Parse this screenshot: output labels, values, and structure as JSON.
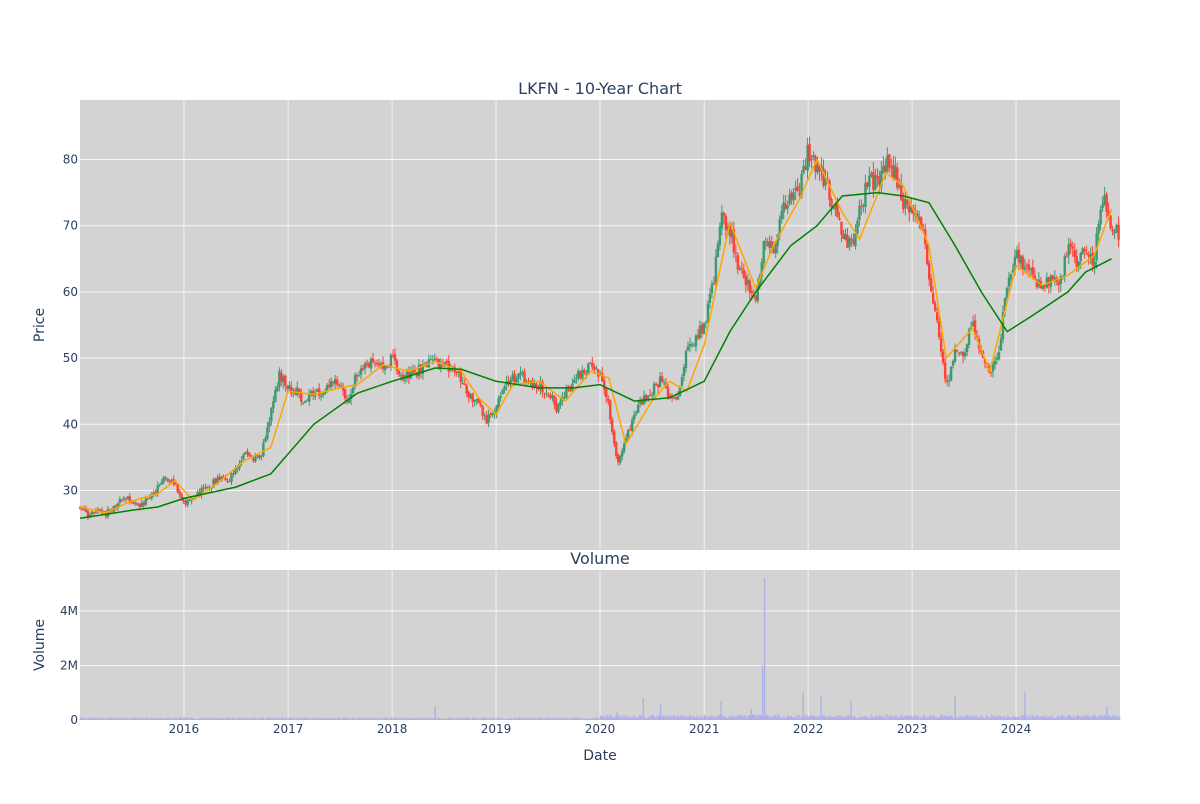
{
  "chart_data": [
    {
      "type": "candlestick",
      "title": "LKFN - 10-Year Chart",
      "ylabel": "Price",
      "xlim": [
        "2015-01-01",
        "2024-12-31"
      ],
      "ylim": [
        21,
        89
      ],
      "yticks": [
        30,
        40,
        50,
        60,
        70,
        80
      ],
      "grid": true,
      "legend": "none",
      "colors": {
        "increasing": "#3d9970",
        "decreasing": "#ff4136",
        "ma_short": "#ffa500",
        "ma_long": "#008000",
        "background": "#d3d3d3"
      },
      "close_series": [
        [
          "2015-01-01",
          27.5
        ],
        [
          "2015-02-01",
          26.2
        ],
        [
          "2015-03-01",
          26.8
        ],
        [
          "2015-04-01",
          26.5
        ],
        [
          "2015-05-01",
          27.5
        ],
        [
          "2015-06-01",
          28.8
        ],
        [
          "2015-07-01",
          28.5
        ],
        [
          "2015-08-01",
          27.5
        ],
        [
          "2015-09-01",
          28.8
        ],
        [
          "2015-10-01",
          30.5
        ],
        [
          "2015-11-01",
          32.0
        ],
        [
          "2015-12-01",
          31.0
        ],
        [
          "2016-01-01",
          28.0
        ],
        [
          "2016-02-01",
          28.5
        ],
        [
          "2016-03-01",
          30.0
        ],
        [
          "2016-04-01",
          30.5
        ],
        [
          "2016-05-01",
          32.0
        ],
        [
          "2016-06-01",
          31.0
        ],
        [
          "2016-07-01",
          33.5
        ],
        [
          "2016-08-01",
          35.5
        ],
        [
          "2016-09-01",
          35.0
        ],
        [
          "2016-10-01",
          35.5
        ],
        [
          "2016-11-01",
          42.0
        ],
        [
          "2016-12-01",
          47.5
        ],
        [
          "2017-01-01",
          45.5
        ],
        [
          "2017-02-01",
          45.0
        ],
        [
          "2017-03-01",
          43.0
        ],
        [
          "2017-04-01",
          45.0
        ],
        [
          "2017-05-01",
          44.0
        ],
        [
          "2017-06-01",
          46.5
        ],
        [
          "2017-07-01",
          45.5
        ],
        [
          "2017-08-01",
          43.5
        ],
        [
          "2017-09-01",
          48.0
        ],
        [
          "2017-10-01",
          48.5
        ],
        [
          "2017-11-01",
          49.5
        ],
        [
          "2017-12-01",
          48.5
        ],
        [
          "2018-01-01",
          50.0
        ],
        [
          "2018-02-01",
          47.0
        ],
        [
          "2018-03-01",
          47.5
        ],
        [
          "2018-04-01",
          48.0
        ],
        [
          "2018-05-01",
          49.0
        ],
        [
          "2018-06-01",
          49.5
        ],
        [
          "2018-07-01",
          48.5
        ],
        [
          "2018-08-01",
          49.0
        ],
        [
          "2018-09-01",
          47.0
        ],
        [
          "2018-10-01",
          44.5
        ],
        [
          "2018-11-01",
          43.0
        ],
        [
          "2018-12-01",
          40.5
        ],
        [
          "2019-01-01",
          42.5
        ],
        [
          "2019-02-01",
          46.5
        ],
        [
          "2019-03-01",
          47.0
        ],
        [
          "2019-04-01",
          47.5
        ],
        [
          "2019-05-01",
          46.0
        ],
        [
          "2019-06-01",
          46.0
        ],
        [
          "2019-07-01",
          45.0
        ],
        [
          "2019-08-01",
          42.5
        ],
        [
          "2019-09-01",
          44.5
        ],
        [
          "2019-10-01",
          46.5
        ],
        [
          "2019-11-01",
          48.0
        ],
        [
          "2019-12-01",
          48.5
        ],
        [
          "2020-01-01",
          47.5
        ],
        [
          "2020-02-01",
          43.0
        ],
        [
          "2020-03-01",
          34.0
        ],
        [
          "2020-04-01",
          38.0
        ],
        [
          "2020-05-01",
          41.0
        ],
        [
          "2020-06-01",
          44.0
        ],
        [
          "2020-07-01",
          45.0
        ],
        [
          "2020-08-01",
          47.0
        ],
        [
          "2020-09-01",
          44.5
        ],
        [
          "2020-10-01",
          44.0
        ],
        [
          "2020-11-01",
          51.0
        ],
        [
          "2020-12-01",
          53.0
        ],
        [
          "2021-01-01",
          55.0
        ],
        [
          "2021-02-01",
          61.0
        ],
        [
          "2021-03-01",
          71.0
        ],
        [
          "2021-04-01",
          69.5
        ],
        [
          "2021-05-01",
          64.0
        ],
        [
          "2021-06-01",
          61.0
        ],
        [
          "2021-07-01",
          59.0
        ],
        [
          "2021-08-01",
          67.5
        ],
        [
          "2021-09-01",
          66.0
        ],
        [
          "2021-10-01",
          72.0
        ],
        [
          "2021-11-01",
          74.5
        ],
        [
          "2021-12-01",
          75.0
        ],
        [
          "2022-01-01",
          81.5
        ],
        [
          "2022-02-01",
          79.0
        ],
        [
          "2022-03-01",
          77.0
        ],
        [
          "2022-04-01",
          73.0
        ],
        [
          "2022-05-01",
          69.0
        ],
        [
          "2022-06-01",
          67.0
        ],
        [
          "2022-07-01",
          72.0
        ],
        [
          "2022-08-01",
          77.5
        ],
        [
          "2022-09-01",
          76.0
        ],
        [
          "2022-10-01",
          79.5
        ],
        [
          "2022-11-01",
          78.0
        ],
        [
          "2022-12-01",
          73.0
        ],
        [
          "2023-01-01",
          72.5
        ],
        [
          "2023-02-01",
          71.0
        ],
        [
          "2023-03-01",
          62.0
        ],
        [
          "2023-04-01",
          55.0
        ],
        [
          "2023-05-01",
          45.0
        ],
        [
          "2023-06-01",
          52.0
        ],
        [
          "2023-07-01",
          51.0
        ],
        [
          "2023-08-01",
          55.0
        ],
        [
          "2023-09-01",
          51.0
        ],
        [
          "2023-10-01",
          47.0
        ],
        [
          "2023-11-01",
          51.0
        ],
        [
          "2023-12-01",
          61.0
        ],
        [
          "2024-01-01",
          66.0
        ],
        [
          "2024-02-01",
          64.0
        ],
        [
          "2024-03-01",
          62.5
        ],
        [
          "2024-04-01",
          60.0
        ],
        [
          "2024-05-01",
          62.0
        ],
        [
          "2024-06-01",
          60.5
        ],
        [
          "2024-07-01",
          67.0
        ],
        [
          "2024-08-01",
          64.5
        ],
        [
          "2024-09-01",
          66.0
        ],
        [
          "2024-10-01",
          65.0
        ],
        [
          "2024-11-01",
          74.5
        ],
        [
          "2024-12-01",
          69.0
        ]
      ],
      "ma_short_series": [
        [
          "2015-01-01",
          27.5
        ],
        [
          "2015-04-01",
          26.6
        ],
        [
          "2015-07-01",
          28.4
        ],
        [
          "2015-10-01",
          29.5
        ],
        [
          "2015-12-01",
          31.5
        ],
        [
          "2016-02-01",
          28.5
        ],
        [
          "2016-05-01",
          31.2
        ],
        [
          "2016-08-01",
          34.5
        ],
        [
          "2016-11-01",
          36.5
        ],
        [
          "2017-01-01",
          45.0
        ],
        [
          "2017-04-01",
          44.5
        ],
        [
          "2017-07-01",
          45.5
        ],
        [
          "2017-09-01",
          46.0
        ],
        [
          "2017-12-01",
          49.0
        ],
        [
          "2018-03-01",
          48.0
        ],
        [
          "2018-06-01",
          49.5
        ],
        [
          "2018-09-01",
          48.0
        ],
        [
          "2018-11-01",
          44.0
        ],
        [
          "2019-01-01",
          41.5
        ],
        [
          "2019-03-01",
          46.0
        ],
        [
          "2019-06-01",
          46.5
        ],
        [
          "2019-09-01",
          43.5
        ],
        [
          "2019-12-01",
          48.0
        ],
        [
          "2020-02-01",
          47.0
        ],
        [
          "2020-04-01",
          37.0
        ],
        [
          "2020-07-01",
          43.5
        ],
        [
          "2020-09-01",
          46.5
        ],
        [
          "2020-11-01",
          45.0
        ],
        [
          "2021-01-01",
          52.0
        ],
        [
          "2021-04-01",
          70.5
        ],
        [
          "2021-07-01",
          60.5
        ],
        [
          "2021-09-01",
          67.0
        ],
        [
          "2021-12-01",
          74.0
        ],
        [
          "2022-02-01",
          80.0
        ],
        [
          "2022-05-01",
          72.0
        ],
        [
          "2022-07-01",
          68.0
        ],
        [
          "2022-10-01",
          78.0
        ],
        [
          "2022-12-01",
          76.0
        ],
        [
          "2023-03-01",
          67.0
        ],
        [
          "2023-05-01",
          50.0
        ],
        [
          "2023-08-01",
          54.5
        ],
        [
          "2023-10-01",
          48.0
        ],
        [
          "2024-01-01",
          64.0
        ],
        [
          "2024-04-01",
          61.0
        ],
        [
          "2024-07-01",
          62.5
        ],
        [
          "2024-10-01",
          65.5
        ],
        [
          "2024-12-01",
          72.5
        ]
      ],
      "ma_long_series": [
        [
          "2015-01-01",
          25.8
        ],
        [
          "2015-07-01",
          27.0
        ],
        [
          "2015-10-01",
          27.5
        ],
        [
          "2016-01-01",
          28.8
        ],
        [
          "2016-07-01",
          30.5
        ],
        [
          "2016-11-01",
          32.5
        ],
        [
          "2017-04-01",
          40.0
        ],
        [
          "2017-09-01",
          44.7
        ],
        [
          "2018-01-01",
          46.5
        ],
        [
          "2018-06-01",
          48.5
        ],
        [
          "2018-09-01",
          48.3
        ],
        [
          "2019-01-01",
          46.5
        ],
        [
          "2019-06-01",
          45.5
        ],
        [
          "2019-10-01",
          45.5
        ],
        [
          "2020-01-01",
          46.0
        ],
        [
          "2020-05-01",
          43.5
        ],
        [
          "2020-09-01",
          44.0
        ],
        [
          "2021-01-01",
          46.5
        ],
        [
          "2021-04-01",
          54.0
        ],
        [
          "2021-07-01",
          60.0
        ],
        [
          "2021-11-01",
          67.0
        ],
        [
          "2022-02-01",
          70.0
        ],
        [
          "2022-05-01",
          74.5
        ],
        [
          "2022-09-01",
          75.0
        ],
        [
          "2022-12-01",
          74.5
        ],
        [
          "2023-03-01",
          73.5
        ],
        [
          "2023-06-01",
          67.0
        ],
        [
          "2023-09-01",
          60.0
        ],
        [
          "2023-12-01",
          54.0
        ],
        [
          "2024-03-01",
          56.5
        ],
        [
          "2024-07-01",
          60.0
        ],
        [
          "2024-09-01",
          63.0
        ],
        [
          "2024-12-01",
          65.0
        ]
      ]
    },
    {
      "type": "bar",
      "title": "Volume",
      "xlabel": "Date",
      "ylabel": "Volume",
      "ylim": [
        0,
        5500000
      ],
      "yticks": [
        0,
        2000000,
        4000000
      ],
      "ytick_labels": [
        "0",
        "2M",
        "4M"
      ],
      "xticks": [
        "2016",
        "2017",
        "2018",
        "2019",
        "2020",
        "2021",
        "2022",
        "2023",
        "2024"
      ],
      "bar_color": "#b0b0e8",
      "spikes": [
        [
          "2018-06-01",
          500000
        ],
        [
          "2020-03-01",
          300000
        ],
        [
          "2020-06-01",
          800000
        ],
        [
          "2020-08-01",
          600000
        ],
        [
          "2021-03-01",
          700000
        ],
        [
          "2021-06-15",
          400000
        ],
        [
          "2021-07-25",
          2000000
        ],
        [
          "2021-08-01",
          5200000
        ],
        [
          "2021-12-15",
          1000000
        ],
        [
          "2022-02-15",
          900000
        ],
        [
          "2022-06-01",
          700000
        ],
        [
          "2023-06-01",
          900000
        ],
        [
          "2024-02-01",
          1000000
        ],
        [
          "2024-11-15",
          500000
        ]
      ]
    }
  ]
}
